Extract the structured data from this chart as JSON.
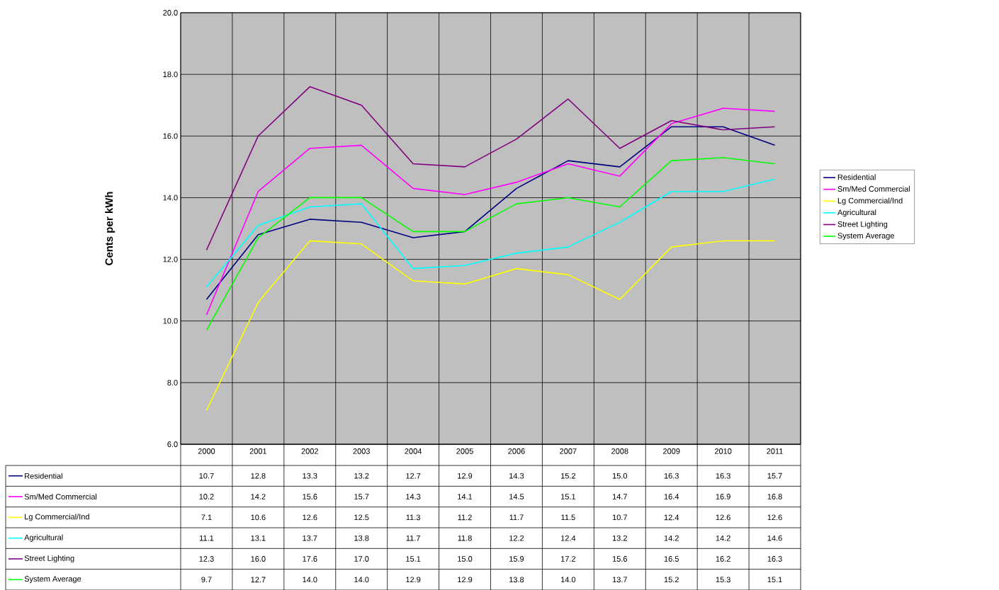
{
  "chart_data": {
    "type": "line",
    "ylabel": "Cents per kWh",
    "categories": [
      "2000",
      "2001",
      "2002",
      "2003",
      "2004",
      "2005",
      "2006",
      "2007",
      "2008",
      "2009",
      "2010",
      "2011"
    ],
    "series": [
      {
        "name": "Residential",
        "color": "#000080",
        "values": [
          10.7,
          12.8,
          13.3,
          13.2,
          12.7,
          12.9,
          14.3,
          15.2,
          15.0,
          16.3,
          16.3,
          15.7
        ],
        "value_labels": [
          "10.7",
          "12.8",
          "13.3",
          "13.2",
          "12.7",
          "12.9",
          "14.3",
          "15.2",
          "15.0",
          "16.3",
          "16.3",
          "15.7"
        ]
      },
      {
        "name": "Sm/Med Commercial",
        "color": "#ff00ff",
        "values": [
          10.2,
          14.2,
          15.6,
          15.7,
          14.3,
          14.1,
          14.5,
          15.1,
          14.7,
          16.4,
          16.9,
          16.8
        ],
        "value_labels": [
          "10.2",
          "14.2",
          "15.6",
          "15.7",
          "14.3",
          "14.1",
          "14.5",
          "15.1",
          "14.7",
          "16.4",
          "16.9",
          "16.8"
        ]
      },
      {
        "name": "Lg Commercial/Ind",
        "color": "#ffff00",
        "values": [
          7.1,
          10.6,
          12.6,
          12.5,
          11.3,
          11.2,
          11.7,
          11.5,
          10.7,
          12.4,
          12.6,
          12.6
        ],
        "value_labels": [
          "7.1",
          "10.6",
          "12.6",
          "12.5",
          "11.3",
          "11.2",
          "11.7",
          "11.5",
          "10.7",
          "12.4",
          "12.6",
          "12.6"
        ]
      },
      {
        "name": "Agricultural",
        "color": "#00ffff",
        "values": [
          11.1,
          13.1,
          13.7,
          13.8,
          11.7,
          11.8,
          12.2,
          12.4,
          13.2,
          14.2,
          14.2,
          14.6
        ],
        "value_labels": [
          "11.1",
          "13.1",
          "13.7",
          "13.8",
          "11.7",
          "11.8",
          "12.2",
          "12.4",
          "13.2",
          "14.2",
          "14.2",
          "14.6"
        ]
      },
      {
        "name": "Street Lighting",
        "color": "#800080",
        "values": [
          12.3,
          16.0,
          17.6,
          17.0,
          15.1,
          15.0,
          15.9,
          17.2,
          15.6,
          16.5,
          16.2,
          16.3
        ],
        "value_labels": [
          "12.3",
          "16.0",
          "17.6",
          "17.0",
          "15.1",
          "15.0",
          "15.9",
          "17.2",
          "15.6",
          "16.5",
          "16.2",
          "16.3"
        ]
      },
      {
        "name": "System Average",
        "color": "#00ff00",
        "values": [
          9.7,
          12.7,
          14.0,
          14.0,
          12.9,
          12.9,
          13.8,
          14.0,
          13.7,
          15.2,
          15.3,
          15.1
        ],
        "value_labels": [
          "9.7",
          "12.7",
          "14.0",
          "14.0",
          "12.9",
          "12.9",
          "13.8",
          "14.0",
          "13.7",
          "15.2",
          "15.3",
          "15.1"
        ]
      }
    ],
    "ylim": [
      6,
      20
    ],
    "yticks": [
      {
        "value": 6,
        "label": "6.0"
      },
      {
        "value": 8,
        "label": "8.0"
      },
      {
        "value": 10,
        "label": "10.0"
      },
      {
        "value": 12,
        "label": "12.0"
      },
      {
        "value": 14,
        "label": "14.0"
      },
      {
        "value": 16,
        "label": "16.0"
      },
      {
        "value": 18,
        "label": "18.0"
      },
      {
        "value": 20,
        "label": "20.0"
      }
    ],
    "grid": true,
    "legend": "right",
    "marker": "none",
    "line_style": "solid"
  }
}
